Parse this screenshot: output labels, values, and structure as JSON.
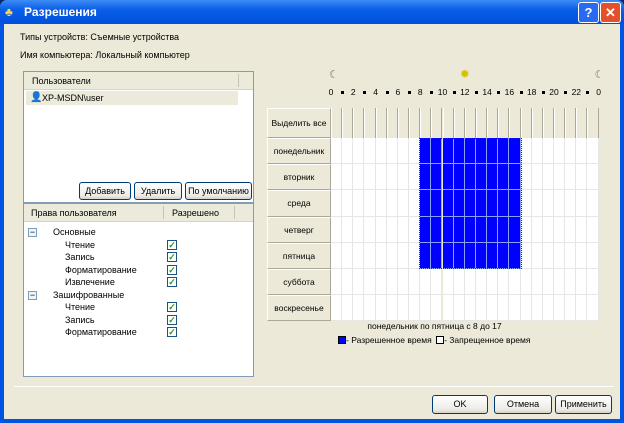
{
  "window": {
    "title": "Разрешения",
    "help_label": "?",
    "close_label": "✕"
  },
  "info": {
    "device_types": "Типы устройств:  Съемные устройства",
    "computer_name": "Имя компьютера:  Локальный компьютер"
  },
  "users": {
    "header": "Пользователи",
    "items": [
      {
        "name": "XP-MSDN\\user",
        "icon": "user-icon"
      }
    ]
  },
  "user_buttons": {
    "add": "Добавить",
    "remove": "Удалить",
    "default": "По умолчанию"
  },
  "rights": {
    "col_rights": "Права пользователя",
    "col_allowed": "Разрешено",
    "groups": [
      {
        "name": "Основные",
        "items": [
          {
            "label": "Чтение",
            "checked": true
          },
          {
            "label": "Запись",
            "checked": true
          },
          {
            "label": "Форматирование",
            "checked": true
          },
          {
            "label": "Извлечение",
            "checked": true
          }
        ]
      },
      {
        "name": "Зашифрованные",
        "items": [
          {
            "label": "Чтение",
            "checked": true
          },
          {
            "label": "Запись",
            "checked": true
          },
          {
            "label": "Форматирование",
            "checked": true
          }
        ]
      }
    ]
  },
  "schedule": {
    "hour_labels": [
      "0",
      "2",
      "4",
      "6",
      "8",
      "10",
      "12",
      "14",
      "16",
      "18",
      "20",
      "22",
      "0"
    ],
    "select_all": "Выделить все",
    "days": [
      "понедельник",
      "вторник",
      "среда",
      "четверг",
      "пятница",
      "суббота",
      "воскресенье"
    ],
    "allowed_days": [
      0,
      1,
      2,
      3,
      4
    ],
    "allowed_from": 8,
    "allowed_to": 17,
    "summary": "понедельник по пятница с 8 до 17",
    "legend_allowed": "- Разрешенное время",
    "legend_denied": "- Запрещенное время",
    "allowed_color": "#0000ff",
    "denied_color": "#ffffff"
  },
  "footer": {
    "ok": "OK",
    "cancel": "Отмена",
    "apply": "Применить"
  }
}
